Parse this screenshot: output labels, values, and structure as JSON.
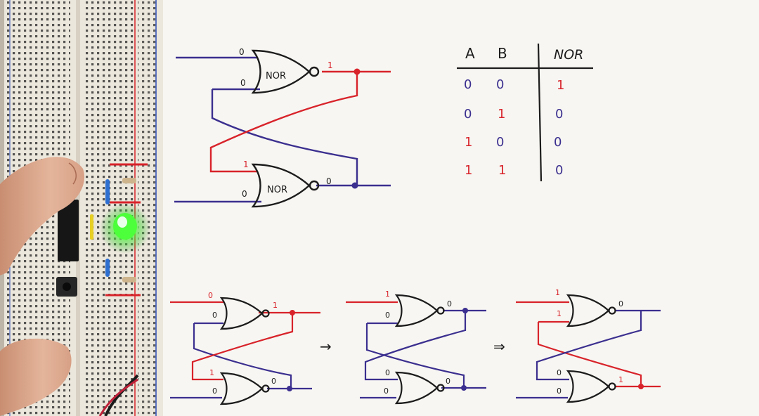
{
  "paper": {
    "gate_label": "NOR"
  },
  "truth_table": {
    "headers": [
      "A",
      "B",
      "NOR"
    ],
    "rows": [
      [
        "0",
        "0",
        "1"
      ],
      [
        "0",
        "1",
        "0"
      ],
      [
        "1",
        "0",
        "0"
      ],
      [
        "1",
        "1",
        "0"
      ]
    ]
  },
  "main_latch": {
    "top_input": "0",
    "top_feedback": "0",
    "top_output": "1",
    "bottom_feedback": "1",
    "bottom_input": "0",
    "bottom_output": "0"
  },
  "sequence": {
    "arrow_1": "→",
    "arrow_2": "⇒",
    "panel_1": {
      "top_in": "0",
      "top_fb": "0",
      "top_out": "1",
      "bot_fb": "1",
      "bot_in": "0",
      "bot_out": "0"
    },
    "panel_2": {
      "top_in": "1",
      "top_fb": "0",
      "top_out": "0",
      "bot_fb": "0",
      "bot_in": "0",
      "bot_out": "0"
    },
    "panel_3": {
      "top_in": "1",
      "top_fb": "1",
      "top_out": "0",
      "bot_fb": "0",
      "bot_in": "0",
      "bot_out": "1"
    }
  },
  "colors": {
    "wire_red": "#d8232a",
    "wire_blue": "#3b2f8f",
    "ink": "#1c1c1c",
    "paper": "#f4f3ee",
    "breadboard": "#ece7dc",
    "led_green": "#3cff3c"
  }
}
